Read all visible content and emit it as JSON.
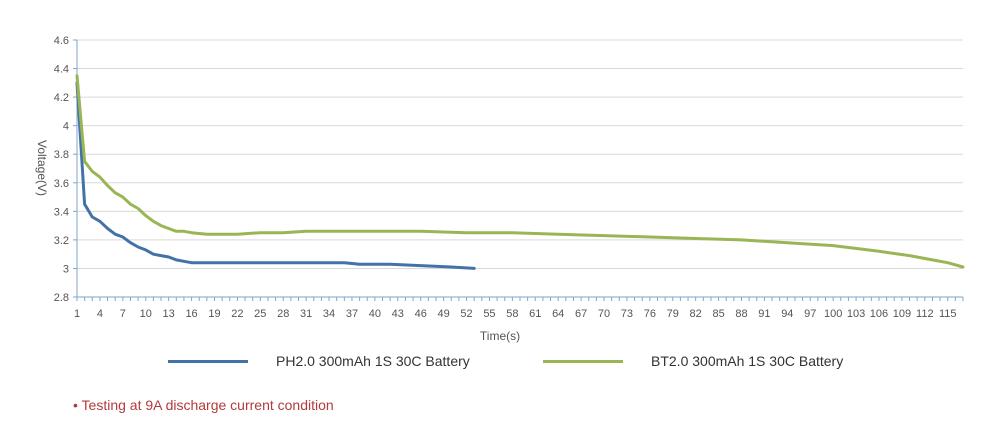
{
  "chart_data": {
    "type": "line",
    "xlabel": "Time(s)",
    "ylabel": "Voltage(V)",
    "ylim": [
      2.8,
      4.6
    ],
    "xlim": [
      1,
      117
    ],
    "y_ticks": [
      "2.8",
      "3",
      "3.2",
      "3.4",
      "3.6",
      "3.8",
      "4",
      "4.2",
      "4.4",
      "4.6"
    ],
    "x_ticks": [
      1,
      4,
      7,
      10,
      13,
      16,
      19,
      22,
      25,
      28,
      31,
      34,
      37,
      40,
      43,
      46,
      49,
      52,
      55,
      58,
      61,
      64,
      67,
      70,
      73,
      76,
      79,
      82,
      85,
      88,
      91,
      94,
      97,
      100,
      103,
      106,
      109,
      112,
      115
    ],
    "grid": "horizontal",
    "legend_position": "bottom",
    "series": [
      {
        "name": "PH2.0 300mAh 1S 30C Battery",
        "color": "#4472a8",
        "x": [
          1,
          2,
          3,
          4,
          5,
          6,
          7,
          8,
          9,
          10,
          11,
          12,
          13,
          14,
          15,
          16,
          18,
          20,
          24,
          28,
          32,
          36,
          38,
          42,
          46,
          50,
          53
        ],
        "y": [
          4.3,
          3.45,
          3.36,
          3.33,
          3.28,
          3.24,
          3.22,
          3.18,
          3.15,
          3.13,
          3.1,
          3.09,
          3.08,
          3.06,
          3.05,
          3.04,
          3.04,
          3.04,
          3.04,
          3.04,
          3.04,
          3.04,
          3.03,
          3.03,
          3.02,
          3.01,
          3.0
        ]
      },
      {
        "name": "BT2.0 300mAh 1S 30C Battery",
        "color": "#9ab554",
        "x": [
          1,
          2,
          3,
          4,
          5,
          6,
          7,
          8,
          9,
          10,
          11,
          12,
          13,
          14,
          15,
          16,
          18,
          20,
          22,
          25,
          28,
          31,
          35,
          40,
          46,
          52,
          58,
          64,
          70,
          76,
          82,
          88,
          94,
          100,
          106,
          110,
          113,
          115,
          117
        ],
        "y": [
          4.35,
          3.75,
          3.68,
          3.64,
          3.58,
          3.53,
          3.5,
          3.45,
          3.42,
          3.37,
          3.33,
          3.3,
          3.28,
          3.26,
          3.26,
          3.25,
          3.24,
          3.24,
          3.24,
          3.25,
          3.25,
          3.26,
          3.26,
          3.26,
          3.26,
          3.25,
          3.25,
          3.24,
          3.23,
          3.22,
          3.21,
          3.2,
          3.18,
          3.16,
          3.12,
          3.09,
          3.06,
          3.04,
          3.01
        ]
      }
    ]
  },
  "legend": {
    "item1": "PH2.0 300mAh 1S 30C Battery",
    "item2": "BT2.0 300mAh 1S 30C Battery"
  },
  "note": "• Testing at 9A discharge current condition"
}
